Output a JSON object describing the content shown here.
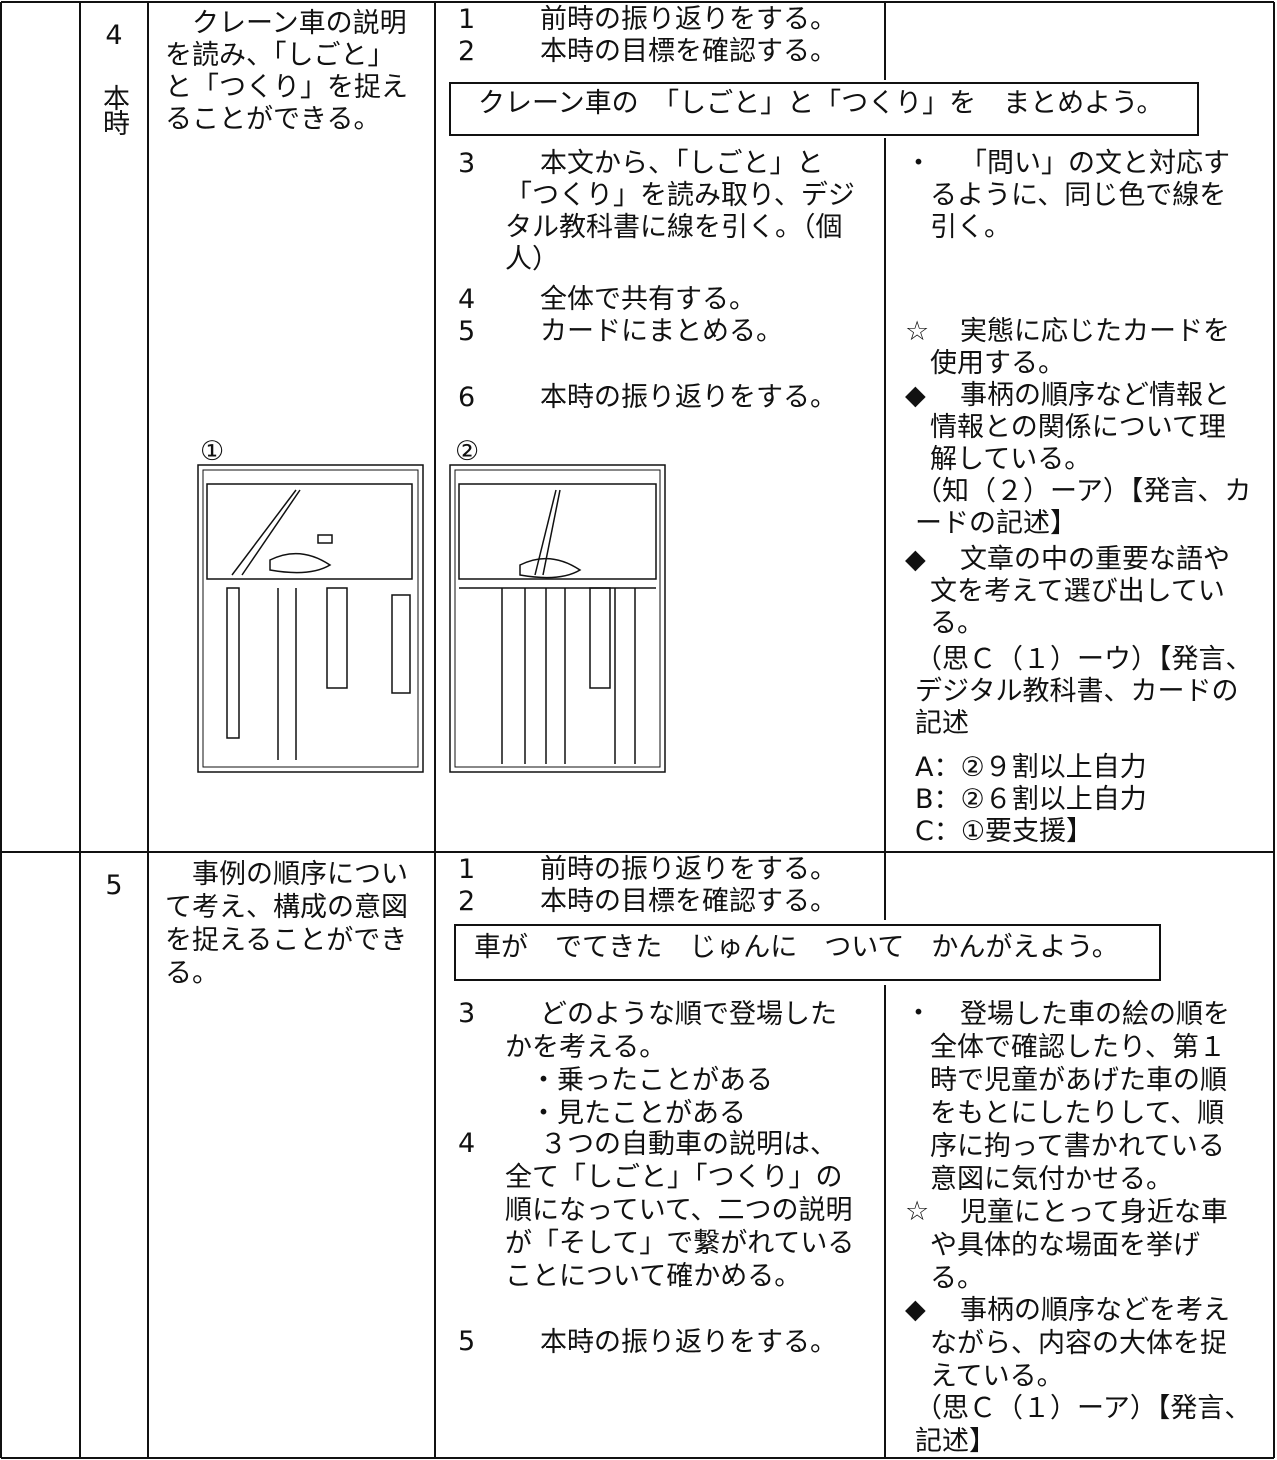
{
  "rows": [
    {
      "lesson": "4",
      "label": "本時",
      "goal": "クレーン車の説明を読み、「しごと」と「つくり」を捉えることができる。",
      "pre_activities": [
        {
          "number": "1",
          "text": "前時の振り返りをする。"
        },
        {
          "number": "2",
          "text": "本時の目標を確認する。"
        }
      ],
      "target": "クレーン車の　「しごと」と「つくり」を　まとめよう。",
      "activities": [
        {
          "number": "3",
          "text": "本文から、「しごと」と「つくり」を読み取り、デジタル教科書に線を引く。（個人）"
        },
        {
          "number": "4",
          "text": "全体で共有する。"
        },
        {
          "number": "5",
          "text": "カードにまとめる。"
        },
        {
          "number": "6",
          "text": "本時の振り返りをする。"
        }
      ],
      "notes": [
        {
          "mark": "・",
          "text": "「問い」の文と対応するように、同じ色で線を引く。"
        },
        {
          "mark": "☆",
          "text": "実態に応じたカードを使用する。"
        },
        {
          "mark": "◆",
          "text": "事柄の順序など情報と情報との関係について理解している。"
        },
        {
          "text": "（知（２）ーア）【発言、カードの記述】"
        },
        {
          "mark": "◆",
          "text": "文章の中の重要な語や文を考えて選び出している。"
        },
        {
          "text": "（思Ｃ（１）ーウ）【発言、デジタル教科書、カードの記述"
        },
        {
          "text": "A：②９割以上自力"
        },
        {
          "text": "B：②６割以上自力"
        },
        {
          "text": "C：①要支援】"
        }
      ],
      "figures": [
        "①",
        "②"
      ]
    },
    {
      "lesson": "5",
      "goal": "事例の順序について考え、構成の意図を捉えることができる。",
      "pre_activities": [
        {
          "number": "1",
          "text": "前時の振り返りをする。"
        },
        {
          "number": "2",
          "text": "本時の目標を確認する。"
        }
      ],
      "target": "車が　でてきた　じゅんに　ついて　かんがえよう。",
      "activities": [
        {
          "number": "3",
          "text": "どのような順で登場したかを考える。",
          "sub": [
            "・乗ったことがある",
            "・見たことがある"
          ]
        },
        {
          "number": "4",
          "text": "３つの自動車の説明は、全て「しごと」「つくり」の順になっていて、二つの説明が「そして」で繋がれていることについて確かめる。"
        },
        {
          "number": "5",
          "text": "本時の振り返りをする。"
        }
      ],
      "notes": [
        {
          "mark": "・",
          "text": "登場した車の絵の順を全体で確認したり、第１時で児童があげた車の順をもとにしたりして、順序に拘って書かれている意図に気付かせる。"
        },
        {
          "mark": "☆",
          "text": "児童にとって身近な車や具体的な場面を挙げる。"
        },
        {
          "mark": "◆",
          "text": "事柄の順序などを考えながら、内容の大体を捉えている。"
        },
        {
          "text": "（思Ｃ（１）ーア）【発言、記述】"
        }
      ]
    }
  ]
}
